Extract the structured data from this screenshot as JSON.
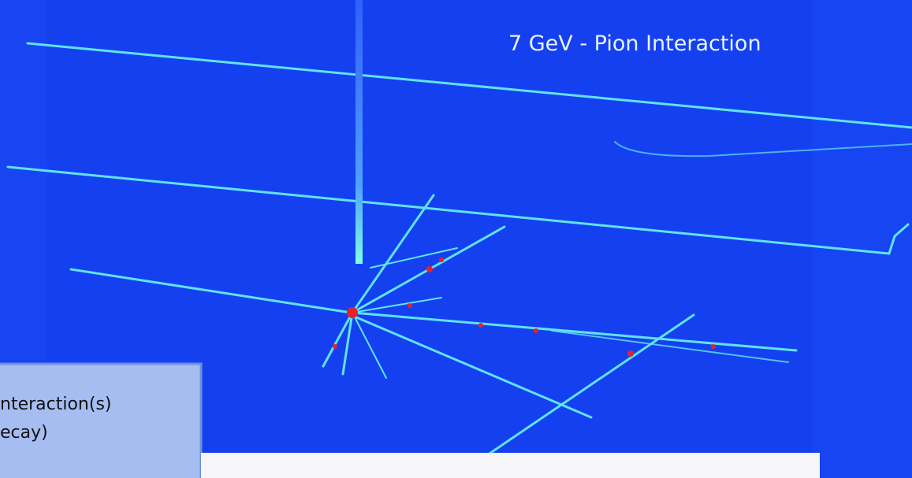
{
  "title": "7 GeV - Pion Interaction",
  "legend": {
    "lines": [
      "nteraction(s)",
      "ecay)"
    ]
  }
}
